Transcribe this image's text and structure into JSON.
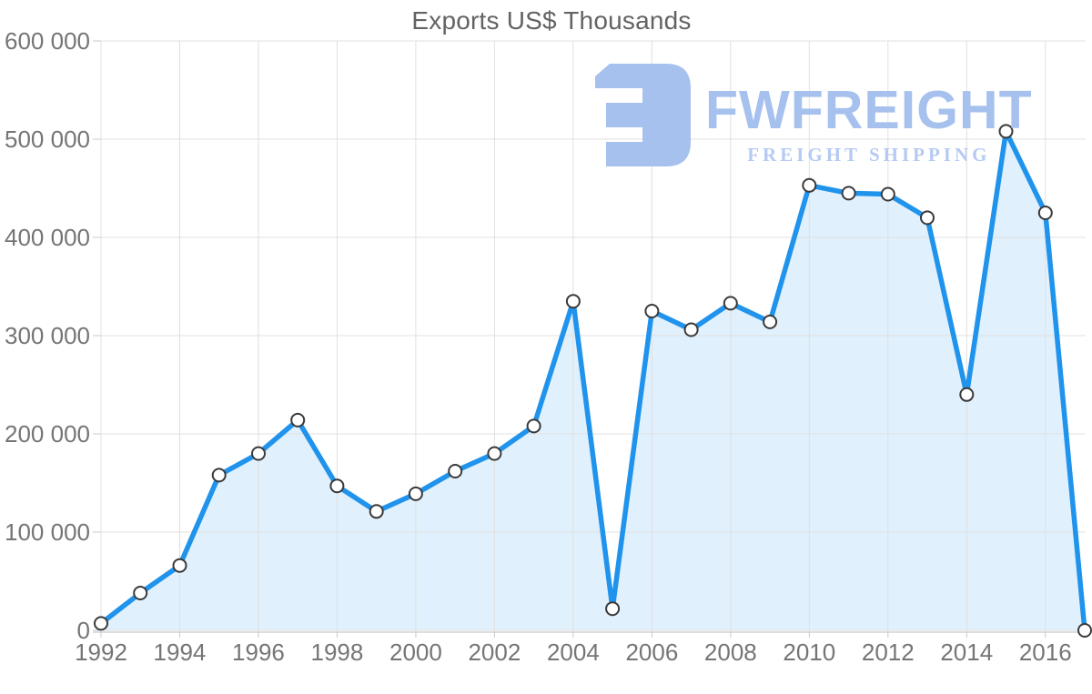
{
  "page": {
    "background": "#ffffff"
  },
  "chart_data": {
    "type": "area",
    "title": "Exports US$ Thousands",
    "xlabel": "",
    "ylabel": "",
    "legend": "none",
    "grid": true,
    "x": [
      1992,
      1993,
      1994,
      1995,
      1996,
      1997,
      1998,
      1999,
      2000,
      2001,
      2002,
      2003,
      2004,
      2005,
      2006,
      2007,
      2008,
      2009,
      2010,
      2011,
      2012,
      2013,
      2014,
      2015,
      2016,
      2017
    ],
    "values": [
      7000,
      38000,
      66000,
      158000,
      180000,
      214000,
      147000,
      121000,
      139000,
      162000,
      180000,
      208000,
      335000,
      22000,
      325000,
      306000,
      333000,
      314000,
      453000,
      445000,
      444000,
      420000,
      240000,
      508000,
      425000,
      0
    ],
    "ylim": [
      0,
      600000
    ],
    "y_tick_step": 100000,
    "y_tick_labels": [
      "0",
      "100 000",
      "200 000",
      "300 000",
      "400 000",
      "500 000",
      "600 000"
    ],
    "x_tick_labels": [
      "1992",
      "1994",
      "1996",
      "1998",
      "2000",
      "2002",
      "2004",
      "2006",
      "2008",
      "2010",
      "2012",
      "2014",
      "2016"
    ],
    "x_tick_years": [
      1992,
      1994,
      1996,
      1998,
      2000,
      2002,
      2004,
      2006,
      2008,
      2010,
      2012,
      2014,
      2016
    ],
    "colors": {
      "line": "#2093ec",
      "area_fill": "rgba(33,150,236,0.14)",
      "marker_fill": "#ffffff",
      "marker_stroke": "#3a3a3a",
      "gridline": "#e0e0e0",
      "axis_line": "#c9c9c9",
      "axis_text": "#757575",
      "title_text": "#636363"
    }
  },
  "watermark": {
    "brand": "FWFREIGHT",
    "tagline": "FREIGHT SHIPPING",
    "logo_icon": "fwfreight-logo-mark",
    "color": "#a6c1ee",
    "tagline_color": "#b5caf3"
  }
}
